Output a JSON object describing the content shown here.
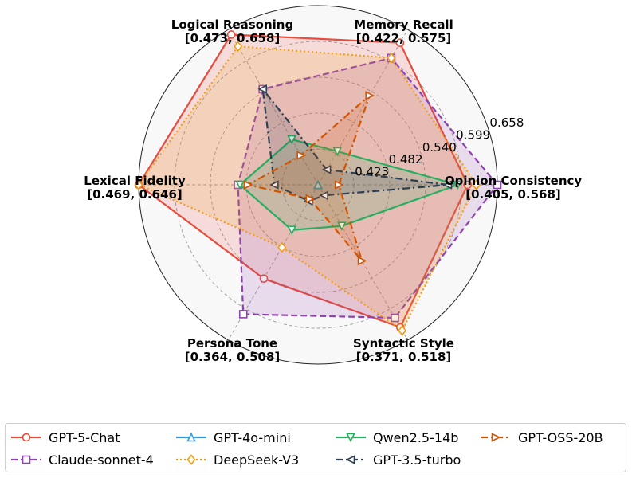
{
  "chart_data": {
    "type": "radar",
    "axes": [
      {
        "name": "Opinion Consistency",
        "range_label": "[0.405, 0.568]",
        "min": 0.405,
        "max": 0.568
      },
      {
        "name": "Memory Recall",
        "range_label": "[0.422, 0.575]",
        "min": 0.422,
        "max": 0.575
      },
      {
        "name": "Logical Reasoning",
        "range_label": "[0.473, 0.658]",
        "min": 0.473,
        "max": 0.658
      },
      {
        "name": "Lexical Fidelity",
        "range_label": "[0.469, 0.646]",
        "min": 0.469,
        "max": 0.646
      },
      {
        "name": "Persona Tone",
        "range_label": "[0.364, 0.508]",
        "min": 0.364,
        "max": 0.508
      },
      {
        "name": "Syntactic Style",
        "range_label": "[0.371, 0.518]",
        "min": 0.371,
        "max": 0.518
      }
    ],
    "radial_ticks": [
      "0.423",
      "0.482",
      "0.540",
      "0.599",
      "0.658"
    ],
    "radial_levels": [
      0.2,
      0.4,
      0.6,
      0.8,
      1.0
    ],
    "series": [
      {
        "name": "GPT-5-Chat",
        "color": "#e74c3c",
        "dash": "solid",
        "marker": "circle",
        "values": [
          0.541,
          0.562,
          0.652,
          0.646,
          0.451,
          0.506
        ]
      },
      {
        "name": "Claude-sonnet-4",
        "color": "#8e44ad",
        "dash": "dashed",
        "marker": "square",
        "values": [
          0.568,
          0.547,
          0.587,
          0.548,
          0.484,
          0.497
        ]
      },
      {
        "name": "GPT-4o-mini",
        "color": "#3498db",
        "dash": "solid",
        "marker": "triangle-up",
        "values": [
          0.405,
          0.422,
          0.473,
          0.469,
          0.364,
          0.371
        ]
      },
      {
        "name": "DeepSeek-V3",
        "color": "#f39c12",
        "dash": "dotted",
        "marker": "diamond",
        "values": [
          0.549,
          0.547,
          0.638,
          0.646,
          0.422,
          0.509
        ]
      },
      {
        "name": "Qwen2.5-14b",
        "color": "#27ae60",
        "dash": "solid",
        "marker": "triangle-down",
        "values": [
          0.532,
          0.455,
          0.527,
          0.546,
          0.406,
          0.41
        ]
      },
      {
        "name": "GPT-3.5-turbo",
        "color": "#2c3e50",
        "dash": "dashdot",
        "marker": "triangle-left",
        "values": [
          0.523,
          0.437,
          0.587,
          0.512,
          0.379,
          0.381
        ]
      },
      {
        "name": "GPT-OSS-20B",
        "color": "#d35400",
        "dash": "dashdot",
        "marker": "triangle-right",
        "values": [
          0.424,
          0.51,
          0.508,
          0.538,
          0.377,
          0.443
        ]
      }
    ],
    "legend_position": "bottom",
    "legend_order": [
      0,
      2,
      4,
      6,
      1,
      3,
      5
    ],
    "grid": true
  }
}
